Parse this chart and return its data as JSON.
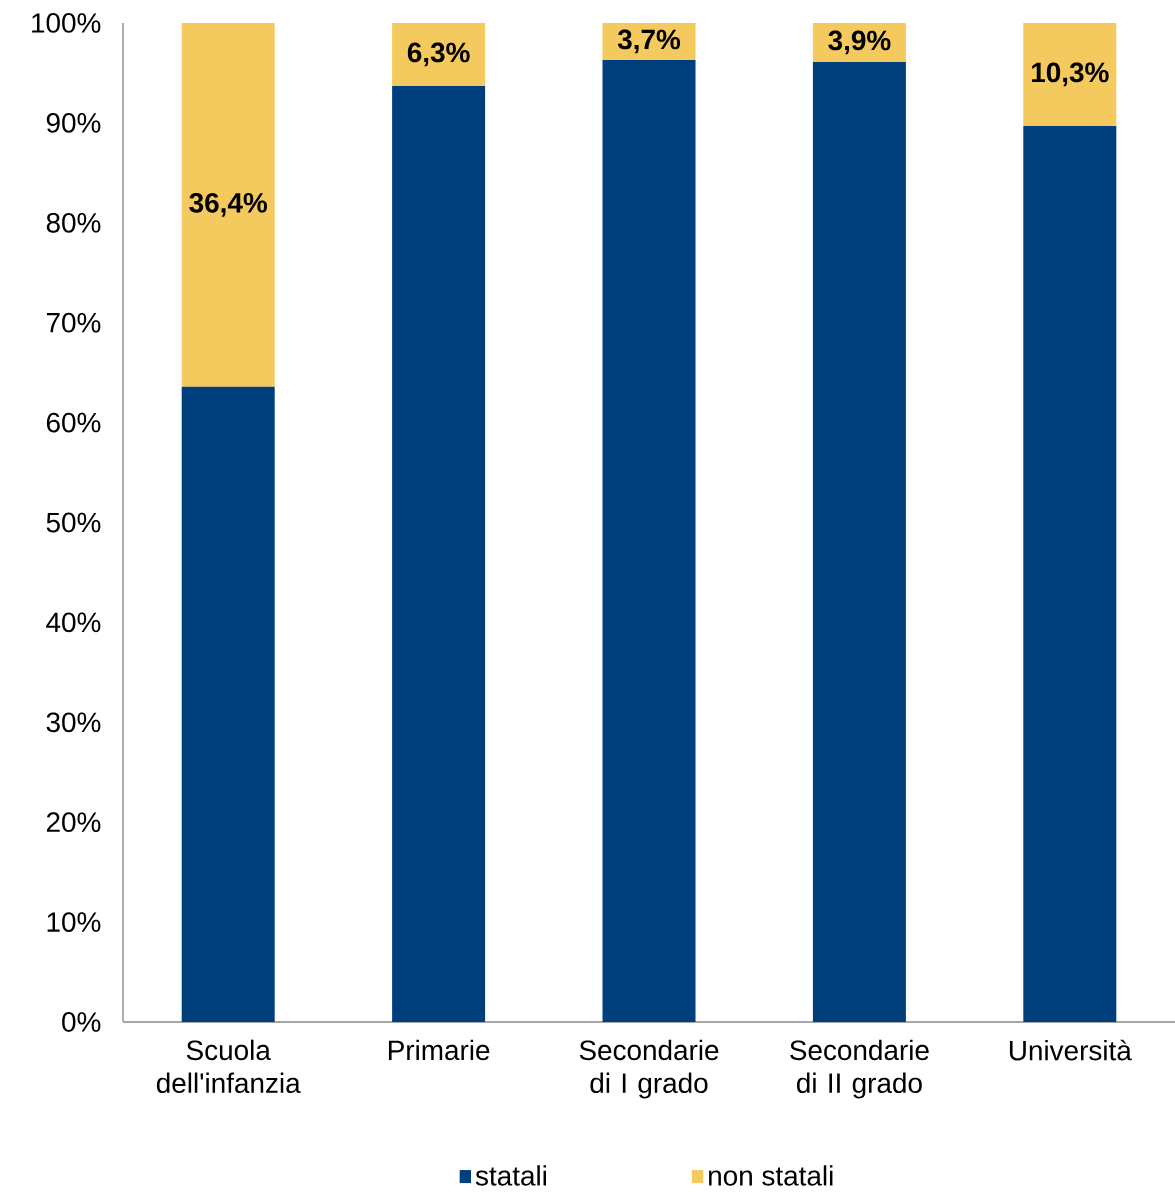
{
  "chart_data": {
    "type": "bar",
    "stacked": true,
    "categories": [
      "Scuola dell'infanzia",
      "Primarie",
      "Secondarie di I grado",
      "Secondarie di II grado",
      "Università"
    ],
    "series": [
      {
        "name": "statali",
        "color": "#003f7d",
        "values": [
          63.6,
          93.7,
          96.3,
          96.1,
          89.7
        ]
      },
      {
        "name": "non statali",
        "color": "#f4c95d",
        "values": [
          36.4,
          6.3,
          3.7,
          3.9,
          10.3
        ],
        "value_labels": [
          "36,4%",
          "6,3%",
          "3,7%",
          "3,9%",
          "10,3%"
        ]
      }
    ],
    "ylim": [
      0,
      100
    ],
    "yticks": [
      {
        "value": 0,
        "label": "0%"
      },
      {
        "value": 10,
        "label": "10%"
      },
      {
        "value": 20,
        "label": "20%"
      },
      {
        "value": 30,
        "label": "30%"
      },
      {
        "value": 40,
        "label": "40%"
      },
      {
        "value": 50,
        "label": "50%"
      },
      {
        "value": 60,
        "label": "60%"
      },
      {
        "value": 70,
        "label": "70%"
      },
      {
        "value": 80,
        "label": "80%"
      },
      {
        "value": 90,
        "label": "90%"
      },
      {
        "value": 100,
        "label": "100%"
      }
    ],
    "legend": "bottom"
  }
}
